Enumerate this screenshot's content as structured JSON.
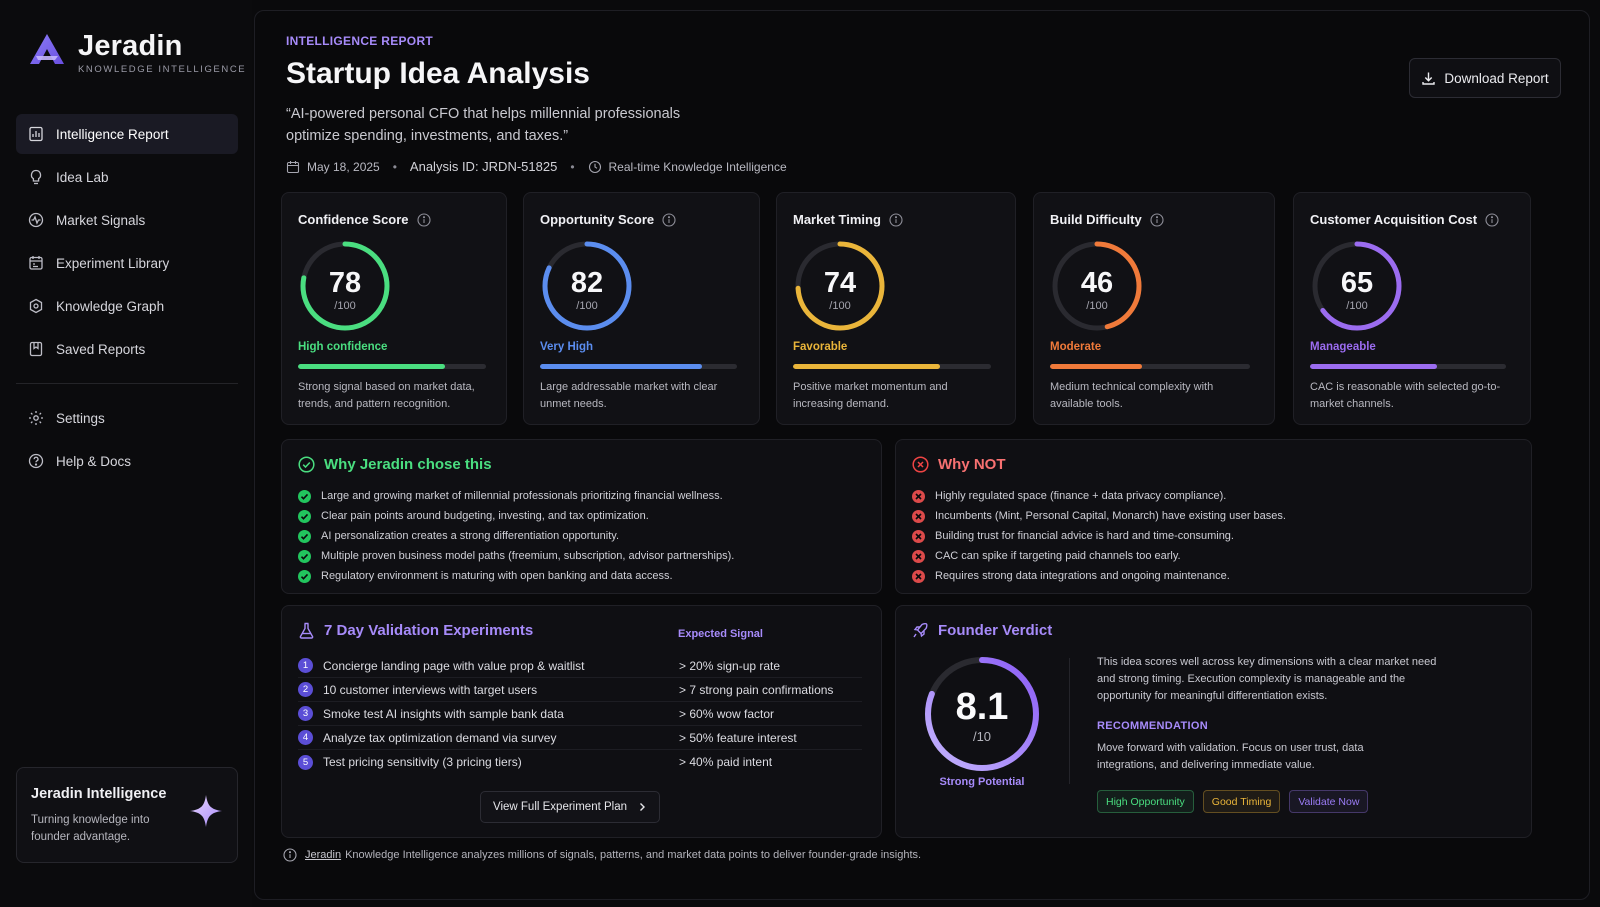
{
  "brand": {
    "name": "Jeradin",
    "tagline": "KNOWLEDGE INTELLIGENCE"
  },
  "nav": {
    "items": [
      {
        "label": "Intelligence Report",
        "icon": "report-icon",
        "active": true
      },
      {
        "label": "Idea Lab",
        "icon": "lightbulb-icon",
        "active": false
      },
      {
        "label": "Market Signals",
        "icon": "signal-icon",
        "active": false
      },
      {
        "label": "Experiment Library",
        "icon": "library-icon",
        "active": false
      },
      {
        "label": "Knowledge Graph",
        "icon": "graph-icon",
        "active": false
      },
      {
        "label": "Saved Reports",
        "icon": "bookmark-icon",
        "active": false
      }
    ],
    "secondary": [
      {
        "label": "Settings",
        "icon": "gear-icon"
      },
      {
        "label": "Help & Docs",
        "icon": "help-icon"
      }
    ]
  },
  "promo": {
    "title": "Jeradin Intelligence",
    "text": "Turning knowledge into founder advantage."
  },
  "header": {
    "eyebrow": "INTELLIGENCE REPORT",
    "title": "Startup Idea Analysis",
    "quote": "“AI-powered personal CFO that helps millennial professionals optimize spending, investments, and taxes.”",
    "date": "May 18, 2025",
    "analysis_id": "Analysis ID: JRDN-51825",
    "mode": "Real-time Knowledge Intelligence",
    "download_label": "Download Report"
  },
  "scores": [
    {
      "title": "Confidence Score",
      "value": "78",
      "max": "/100",
      "fraction": 0.78,
      "label": "High confidence",
      "color": "#4ade80",
      "desc": "Strong signal based on market data, trends, and pattern recognition."
    },
    {
      "title": "Opportunity Score",
      "value": "82",
      "max": "/100",
      "fraction": 0.82,
      "label": "Very High",
      "color": "#5b8def",
      "desc": "Large addressable market with clear unmet needs."
    },
    {
      "title": "Market Timing",
      "value": "74",
      "max": "/100",
      "fraction": 0.74,
      "label": "Favorable",
      "color": "#eab53a",
      "desc": "Positive market momentum and increasing demand."
    },
    {
      "title": "Build Difficulty",
      "value": "46",
      "max": "/100",
      "fraction": 0.46,
      "label": "Moderate",
      "color": "#f07a3a",
      "desc": "Medium technical complexity with available tools."
    },
    {
      "title": "Customer Acquisition Cost",
      "value": "65",
      "max": "/100",
      "fraction": 0.65,
      "label": "Manageable",
      "color": "#9b6cf0",
      "desc": "CAC is reasonable with selected go-to-market channels."
    }
  ],
  "why": {
    "title": "Why Jeradin chose this",
    "items": [
      "Large and growing market of millennial professionals prioritizing financial wellness.",
      "Clear pain points around budgeting, investing, and tax optimization.",
      "AI personalization creates a strong differentiation opportunity.",
      "Multiple proven business model paths (freemium, subscription, advisor partnerships).",
      "Regulatory environment is maturing with open banking and data access."
    ]
  },
  "why_not": {
    "title": "Why NOT",
    "items": [
      "Highly regulated space (finance + data privacy compliance).",
      "Incumbents (Mint, Personal Capital, Monarch) have existing user bases.",
      "Building trust for financial advice is hard and time-consuming.",
      "CAC can spike if targeting paid channels too early.",
      "Requires strong data integrations and ongoing maintenance."
    ]
  },
  "experiments": {
    "title": "7 Day Validation Experiments",
    "signal_header": "Expected Signal",
    "rows": [
      {
        "n": "1",
        "name": "Concierge landing page with value prop & waitlist",
        "signal": "> 20% sign-up rate"
      },
      {
        "n": "2",
        "name": "10 customer interviews with target users",
        "signal": "> 7 strong pain confirmations"
      },
      {
        "n": "3",
        "name": "Smoke test AI insights with sample bank data",
        "signal": "> 60% wow factor"
      },
      {
        "n": "4",
        "name": "Analyze tax optimization demand via survey",
        "signal": "> 50% feature interest"
      },
      {
        "n": "5",
        "name": "Test pricing sensitivity (3 pricing tiers)",
        "signal": "> 40% paid intent"
      }
    ],
    "button": "View Full Experiment Plan"
  },
  "verdict": {
    "title": "Founder Verdict",
    "score": "8.1",
    "max": "/10",
    "fraction": 0.81,
    "label": "Strong Potential",
    "text": "This idea scores well across key dimensions with a clear market need and strong timing. Execution complexity is manageable and the opportunity for meaningful differentiation exists.",
    "rec_header": "RECOMMENDATION",
    "rec": "Move forward with validation. Focus on user trust, data integrations, and delivering immediate value.",
    "tags": [
      {
        "label": "High Opportunity",
        "color": "#4ade80"
      },
      {
        "label": "Good Timing",
        "color": "#eab53a"
      },
      {
        "label": "Validate Now",
        "color": "#9b7cf6"
      }
    ]
  },
  "footer": {
    "link": "Jeradin",
    "text": "Knowledge Intelligence analyzes millions of signals, patterns, and market data points to deliver founder-grade insights."
  }
}
